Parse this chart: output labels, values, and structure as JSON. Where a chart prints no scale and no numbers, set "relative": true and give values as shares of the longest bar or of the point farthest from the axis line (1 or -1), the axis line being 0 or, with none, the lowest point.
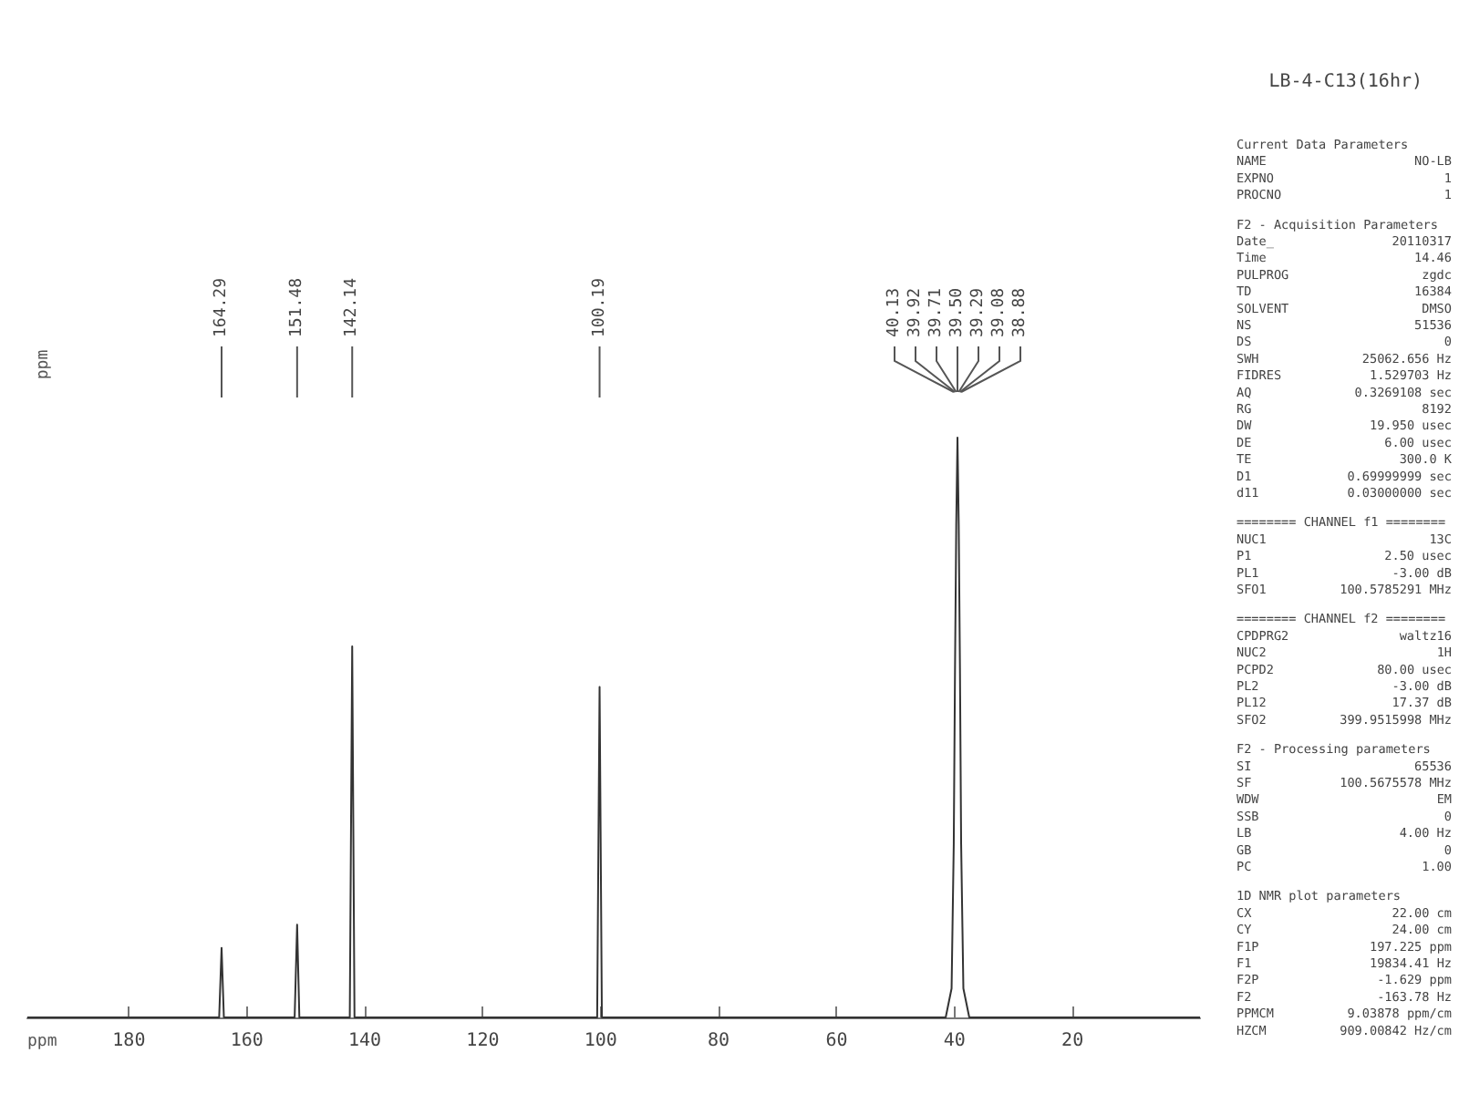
{
  "chart_data": {
    "type": "line",
    "title": "LB-4-C13(16hr)",
    "xlabel": "ppm",
    "ylabel": "ppm",
    "relative": true,
    "color": "#333333",
    "grid": false,
    "marker": "none",
    "line_style": "solid",
    "xlim": [
      197.225,
      -1.629
    ],
    "xticks": [
      180,
      160,
      140,
      120,
      100,
      80,
      60,
      40,
      20
    ],
    "x": [
      197.225,
      164.7,
      164.29,
      163.9,
      151.9,
      151.48,
      151.1,
      142.55,
      142.14,
      141.75,
      100.6,
      100.19,
      99.8,
      41.5,
      40.5,
      40.13,
      39.92,
      39.71,
      39.5,
      39.29,
      39.08,
      38.88,
      38.5,
      37.5,
      -1.629
    ],
    "values": [
      0,
      0,
      0.12,
      0,
      0,
      0.16,
      0,
      0,
      0.64,
      0,
      0,
      0.57,
      0,
      0,
      0.05,
      0.3,
      0.6,
      0.85,
      1,
      0.85,
      0.6,
      0.3,
      0.05,
      0,
      0
    ],
    "annotations": [
      {
        "text": "164.29",
        "x": 164.29
      },
      {
        "text": "151.48",
        "x": 151.48
      },
      {
        "text": "142.14",
        "x": 142.14
      },
      {
        "text": "100.19",
        "x": 100.19
      },
      {
        "text": "40.13",
        "x": 40.13
      },
      {
        "text": "39.92",
        "x": 39.92
      },
      {
        "text": "39.71",
        "x": 39.71
      },
      {
        "text": "39.50",
        "x": 39.5
      },
      {
        "text": "39.29",
        "x": 39.29
      },
      {
        "text": "39.08",
        "x": 39.08
      },
      {
        "text": "38.88",
        "x": 38.88
      },
      "Current Data Parameters",
      "NAME\tNO-LB",
      "EXPNO\t1",
      "PROCNO\t1",
      "F2 - Acquisition Parameters",
      "Date_\t20110317",
      "Time\t14.46",
      "PULPROG\tzgdc",
      "TD\t16384",
      "SOLVENT\tDMSO",
      "NS\t51536",
      "DS\t0",
      "SWH\t25062.656 Hz",
      "FIDRES\t1.529703 Hz",
      "AQ\t0.3269108 sec",
      "RG\t8192",
      "DW\t19.950 usec",
      "DE\t6.00 usec",
      "TE\t300.0 K",
      "D1\t0.69999999 sec",
      "d11\t0.03000000 sec",
      "======== CHANNEL f1 ========",
      "NUC1\t13C",
      "P1\t2.50 usec",
      "PL1\t-3.00 dB",
      "SFO1\t100.5785291 MHz",
      "======== CHANNEL f2 ========",
      "CPDPRG2\twaltz16",
      "NUC2\t1H",
      "PCPD2\t80.00 usec",
      "PL2\t-3.00 dB",
      "PL12\t17.37 dB",
      "SFO2\t399.9515998 MHz",
      "F2 - Processing parameters",
      "SI\t65536",
      "SF\t100.5675578 MHz",
      "WDW\tEM",
      "SSB\t0",
      "LB\t4.00 Hz",
      "GB\t0",
      "PC\t1.00",
      "1D NMR plot parameters",
      "CX\t22.00 cm",
      "CY\t24.00 cm",
      "F1P\t197.225 ppm",
      "F1\t19834.41 Hz",
      "F2P\t-1.629 ppm",
      "F2\t-163.78 Hz",
      "PPMCM\t9.03878 ppm/cm",
      "HZCM\t909.00842 Hz/cm"
    ]
  }
}
